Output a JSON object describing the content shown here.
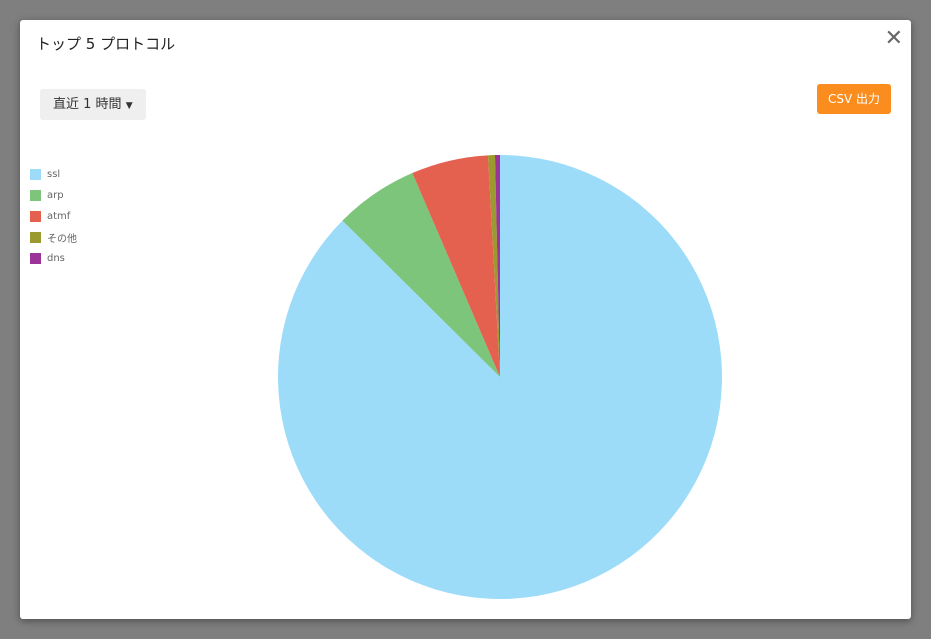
{
  "modal": {
    "title": "トップ 5 プロトコル",
    "close_icon": "close-icon",
    "range_label": "直近 1 時間",
    "csv_label": "CSV 出力",
    "csv_color": "#fb8c1e"
  },
  "chart_data": {
    "type": "pie",
    "legend_position": "top-left",
    "unit": "percent (estimated share)",
    "series": [
      {
        "name": "ssl",
        "value": 87.44,
        "color": "#9cdcf9"
      },
      {
        "name": "arp",
        "value": 6.1,
        "color": "#7cc57a"
      },
      {
        "name": "atmf",
        "value": 5.6,
        "color": "#e46150"
      },
      {
        "name": "その他",
        "value": 0.5,
        "color": "#9a9a2e"
      },
      {
        "name": "dns",
        "value": 0.36,
        "color": "#9b3399"
      }
    ]
  }
}
